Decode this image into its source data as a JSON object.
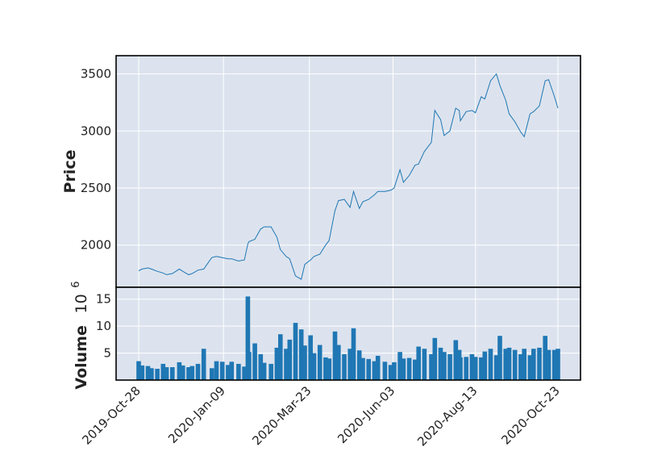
{
  "chart_data": {
    "type": "line",
    "price_panel": {
      "ylabel": "Price",
      "ylim": [
        1630,
        3660
      ],
      "yticks": [
        2000,
        2500,
        3000,
        3500
      ],
      "ytick_labels": [
        "2000",
        "2500",
        "3000",
        "3500"
      ],
      "grid": true,
      "background": "#dce3ee",
      "line_color": "#1f77b4",
      "series": [
        {
          "x": [
            "2019-10-28",
            "2019-10-31",
            "2019-11-05",
            "2019-11-08",
            "2019-11-13",
            "2019-11-18",
            "2019-11-21",
            "2019-11-26",
            "2019-12-02",
            "2019-12-05",
            "2019-12-10",
            "2019-12-13",
            "2019-12-18",
            "2019-12-23",
            "2019-12-30",
            "2020-01-03",
            "2020-01-08",
            "2020-01-13",
            "2020-01-16",
            "2020-01-22",
            "2020-01-27",
            "2020-01-30",
            "2020-01-31",
            "2020-02-05",
            "2020-02-10",
            "2020-02-13",
            "2020-02-19",
            "2020-02-24",
            "2020-02-27",
            "2020-03-03",
            "2020-03-06",
            "2020-03-11",
            "2020-03-16",
            "2020-03-19",
            "2020-03-24",
            "2020-03-27",
            "2020-04-01",
            "2020-04-06",
            "2020-04-09",
            "2020-04-14",
            "2020-04-17",
            "2020-04-22",
            "2020-04-27",
            "2020-04-30",
            "2020-05-05",
            "2020-05-08",
            "2020-05-13",
            "2020-05-18",
            "2020-05-21",
            "2020-05-27",
            "2020-06-01",
            "2020-06-04",
            "2020-06-09",
            "2020-06-12",
            "2020-06-17",
            "2020-06-22",
            "2020-06-25",
            "2020-06-30",
            "2020-07-06",
            "2020-07-09",
            "2020-07-14",
            "2020-07-17",
            "2020-07-22",
            "2020-07-27",
            "2020-07-30",
            "2020-07-31",
            "2020-08-05",
            "2020-08-10",
            "2020-08-13",
            "2020-08-18",
            "2020-08-21",
            "2020-08-26",
            "2020-08-31",
            "2020-09-03",
            "2020-09-08",
            "2020-09-11",
            "2020-09-16",
            "2020-09-21",
            "2020-09-24",
            "2020-09-29",
            "2020-10-02",
            "2020-10-07",
            "2020-10-12",
            "2020-10-15",
            "2020-10-20",
            "2020-10-23"
          ],
          "y": [
            1775,
            1790,
            1800,
            1790,
            1770,
            1755,
            1740,
            1750,
            1790,
            1770,
            1740,
            1750,
            1780,
            1790,
            1890,
            1900,
            1890,
            1880,
            1880,
            1860,
            1870,
            2010,
            2030,
            2050,
            2140,
            2160,
            2160,
            2070,
            1960,
            1900,
            1880,
            1730,
            1700,
            1830,
            1870,
            1900,
            1920,
            2000,
            2040,
            2300,
            2390,
            2400,
            2330,
            2470,
            2320,
            2380,
            2400,
            2440,
            2470,
            2470,
            2480,
            2500,
            2660,
            2550,
            2610,
            2700,
            2710,
            2820,
            2900,
            3180,
            3100,
            2960,
            3000,
            3200,
            3180,
            3090,
            3170,
            3180,
            3160,
            3300,
            3280,
            3440,
            3500,
            3400,
            3270,
            3150,
            3080,
            2990,
            2950,
            3150,
            3170,
            3220,
            3440,
            3450,
            3300,
            3200
          ]
        }
      ]
    },
    "volume_panel": {
      "ylabel": "Volume",
      "ylabel_exponent": "10",
      "ylabel_exponent_power": "6",
      "ylim": [
        0,
        17.2
      ],
      "yticks": [
        5,
        10,
        15
      ],
      "ytick_labels": [
        "5",
        "10",
        "15"
      ],
      "grid": true,
      "bar_color": "#1f77b4",
      "series": [
        {
          "x": [
            "2019-10-28",
            "2019-10-31",
            "2019-11-05",
            "2019-11-08",
            "2019-11-13",
            "2019-11-18",
            "2019-11-21",
            "2019-11-26",
            "2019-12-02",
            "2019-12-05",
            "2019-12-10",
            "2019-12-13",
            "2019-12-18",
            "2019-12-23",
            "2019-12-30",
            "2020-01-03",
            "2020-01-08",
            "2020-01-13",
            "2020-01-16",
            "2020-01-22",
            "2020-01-27",
            "2020-01-30",
            "2020-01-31",
            "2020-02-05",
            "2020-02-10",
            "2020-02-13",
            "2020-02-19",
            "2020-02-24",
            "2020-02-27",
            "2020-03-03",
            "2020-03-06",
            "2020-03-11",
            "2020-03-16",
            "2020-03-19",
            "2020-03-24",
            "2020-03-27",
            "2020-04-01",
            "2020-04-06",
            "2020-04-09",
            "2020-04-14",
            "2020-04-17",
            "2020-04-22",
            "2020-04-27",
            "2020-04-30",
            "2020-05-05",
            "2020-05-08",
            "2020-05-13",
            "2020-05-18",
            "2020-05-21",
            "2020-05-27",
            "2020-06-01",
            "2020-06-04",
            "2020-06-09",
            "2020-06-12",
            "2020-06-17",
            "2020-06-22",
            "2020-06-25",
            "2020-06-30",
            "2020-07-06",
            "2020-07-09",
            "2020-07-14",
            "2020-07-17",
            "2020-07-22",
            "2020-07-27",
            "2020-07-30",
            "2020-07-31",
            "2020-08-05",
            "2020-08-10",
            "2020-08-13",
            "2020-08-18",
            "2020-08-21",
            "2020-08-26",
            "2020-08-31",
            "2020-09-03",
            "2020-09-08",
            "2020-09-11",
            "2020-09-16",
            "2020-09-21",
            "2020-09-24",
            "2020-09-29",
            "2020-10-02",
            "2020-10-07",
            "2020-10-12",
            "2020-10-15",
            "2020-10-20",
            "2020-10-23"
          ],
          "y": [
            3.5,
            2.7,
            2.6,
            2.2,
            2.1,
            3.0,
            2.4,
            2.4,
            3.3,
            2.7,
            2.4,
            2.6,
            3.0,
            5.8,
            2.2,
            3.5,
            3.4,
            2.8,
            3.4,
            3.0,
            2.5,
            15.5,
            5.2,
            6.8,
            4.8,
            3.2,
            3.0,
            6.0,
            8.5,
            5.8,
            7.5,
            10.6,
            9.4,
            6.4,
            8.3,
            5.0,
            6.5,
            4.2,
            4.0,
            9.0,
            6.5,
            4.8,
            5.8,
            9.6,
            5.5,
            4.1,
            3.9,
            3.5,
            4.5,
            3.4,
            2.8,
            3.3,
            5.2,
            4.0,
            4.1,
            3.8,
            6.2,
            5.8,
            4.8,
            7.8,
            6.0,
            5.2,
            4.8,
            7.4,
            5.6,
            4.2,
            4.3,
            4.8,
            4.3,
            4.2,
            5.3,
            5.8,
            4.6,
            8.2,
            5.8,
            6.0,
            5.6,
            4.8,
            5.8,
            4.6,
            5.8,
            6.0,
            8.2,
            5.6,
            5.6,
            5.8
          ]
        }
      ]
    },
    "x_axis": {
      "ticks": [
        "2019-10-28",
        "2020-01-09",
        "2020-03-23",
        "2020-06-03",
        "2020-08-13",
        "2020-10-23"
      ],
      "tick_labels": [
        "2019-Oct-28",
        "2020-Jan-09",
        "2020-Mar-23",
        "2020-Jun-03",
        "2020-Aug-13",
        "2020-Oct-23"
      ],
      "label_rotation_deg": 45
    }
  }
}
